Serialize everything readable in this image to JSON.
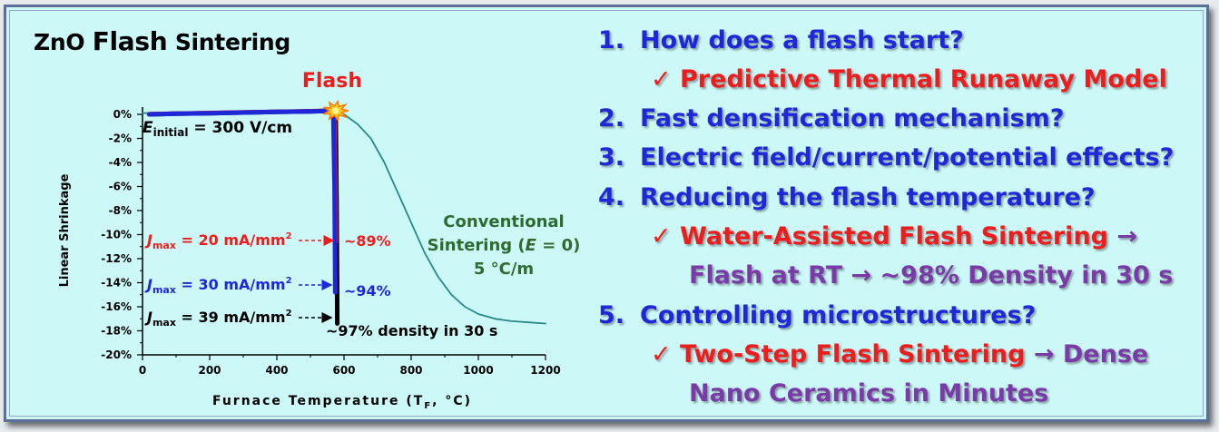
{
  "slide": {
    "title_prefix": "ZnO ",
    "title_main": "Flash",
    "title_suffix": " Sintering",
    "colors": {
      "background": "#ccf8f8",
      "blue": "#1f28d8",
      "red": "#ee1d1d",
      "purple": "#7a3aa8",
      "teal": "#2a8a8a",
      "olive": "#2f6b2f"
    }
  },
  "chart_data": {
    "type": "line",
    "xlabel": "Furnace Temperature (T",
    "xlabel_sub": "F",
    "xlabel_end": ", °C)",
    "ylabel": "Linear Shrinkage",
    "xlim": [
      0,
      1200
    ],
    "ylim": [
      -20,
      0
    ],
    "x_ticks": [
      0,
      200,
      400,
      600,
      800,
      1000,
      1200
    ],
    "y_ticks": [
      0,
      -2,
      -4,
      -6,
      -8,
      -10,
      -12,
      -14,
      -16,
      -18,
      -20
    ],
    "y_tick_labels": [
      "0%",
      "-2%",
      "-4%",
      "-6%",
      "-8%",
      "-10%",
      "-12%",
      "-14%",
      "-16%",
      "-18%",
      "-20%"
    ],
    "series": [
      {
        "color": "#2a8a8a",
        "x": [
          0,
          100,
          200,
          300,
          400,
          500,
          560,
          600,
          640,
          680,
          720,
          760,
          800,
          840,
          880,
          920,
          960,
          1000,
          1050,
          1100,
          1150,
          1200
        ],
        "y": [
          0.1,
          0.15,
          0.2,
          0.25,
          0.3,
          0.3,
          0.2,
          0,
          -0.8,
          -2,
          -4,
          -6.5,
          -9,
          -11.5,
          -13.5,
          -15,
          -16,
          -16.6,
          -17,
          -17.2,
          -17.3,
          -17.4
        ]
      },
      {
        "color": "#000000",
        "x": [
          20,
          100,
          200,
          300,
          400,
          500,
          575,
          578,
          580
        ],
        "y": [
          0,
          0.05,
          0.1,
          0.15,
          0.2,
          0.25,
          0.3,
          -8,
          -17.4
        ]
      },
      {
        "color": "#ee1d1d",
        "x": [
          20,
          100,
          200,
          300,
          400,
          500,
          572,
          575,
          577
        ],
        "y": [
          0.05,
          0.1,
          0.15,
          0.2,
          0.25,
          0.3,
          0.35,
          -5,
          -10.6
        ]
      },
      {
        "color": "#1f28d8",
        "x": [
          20,
          100,
          200,
          300,
          400,
          500,
          568,
          572,
          574
        ],
        "y": [
          0,
          0.05,
          0.1,
          0.15,
          0.2,
          0.25,
          0.3,
          -6,
          -14.8
        ]
      }
    ],
    "annotations": {
      "flash": "Flash",
      "e_initial_sym": "E",
      "e_initial_sub": "initial",
      "e_initial_val": " = 300 V/cm",
      "j_sym": "J",
      "j_sub": "max",
      "j20": " = 20 mA/mm",
      "j30": " = 30 mA/mm",
      "j39": " = 39 mA/mm",
      "sq": "2",
      "p89": "~89%",
      "p94": "~94%",
      "p97": "~97% density in 30 s",
      "conv1": "Conventional",
      "conv2a": "Sintering (",
      "conv2e": "E",
      "conv2b": " = 0)",
      "conv3": "5 °C/m"
    }
  },
  "questions": {
    "q1_num": "1.",
    "q1": "How does a flash start?",
    "a1": "✓ Predictive Thermal Runaway Model",
    "q2_num": "2.",
    "q2": "Fast densification mechanism?",
    "q3_num": "3.",
    "q3": "Electric field/current/potential effects?",
    "q4_num": "4.",
    "q4": "Reducing the flash temperature?",
    "a4_check": "✓ ",
    "a4_red": "Water-Assisted Flash Sintering",
    "a4_arrow": " →",
    "a4_line2": "Flash at RT → ~98% Density in 30 s",
    "q5_num": "5.",
    "q5": "Controlling microstructures?",
    "a5_check": "✓ ",
    "a5_red": "Two-Step Flash Sintering",
    "a5_rest": " → Dense",
    "a5_line2": "Nano Ceramics in Minutes"
  }
}
